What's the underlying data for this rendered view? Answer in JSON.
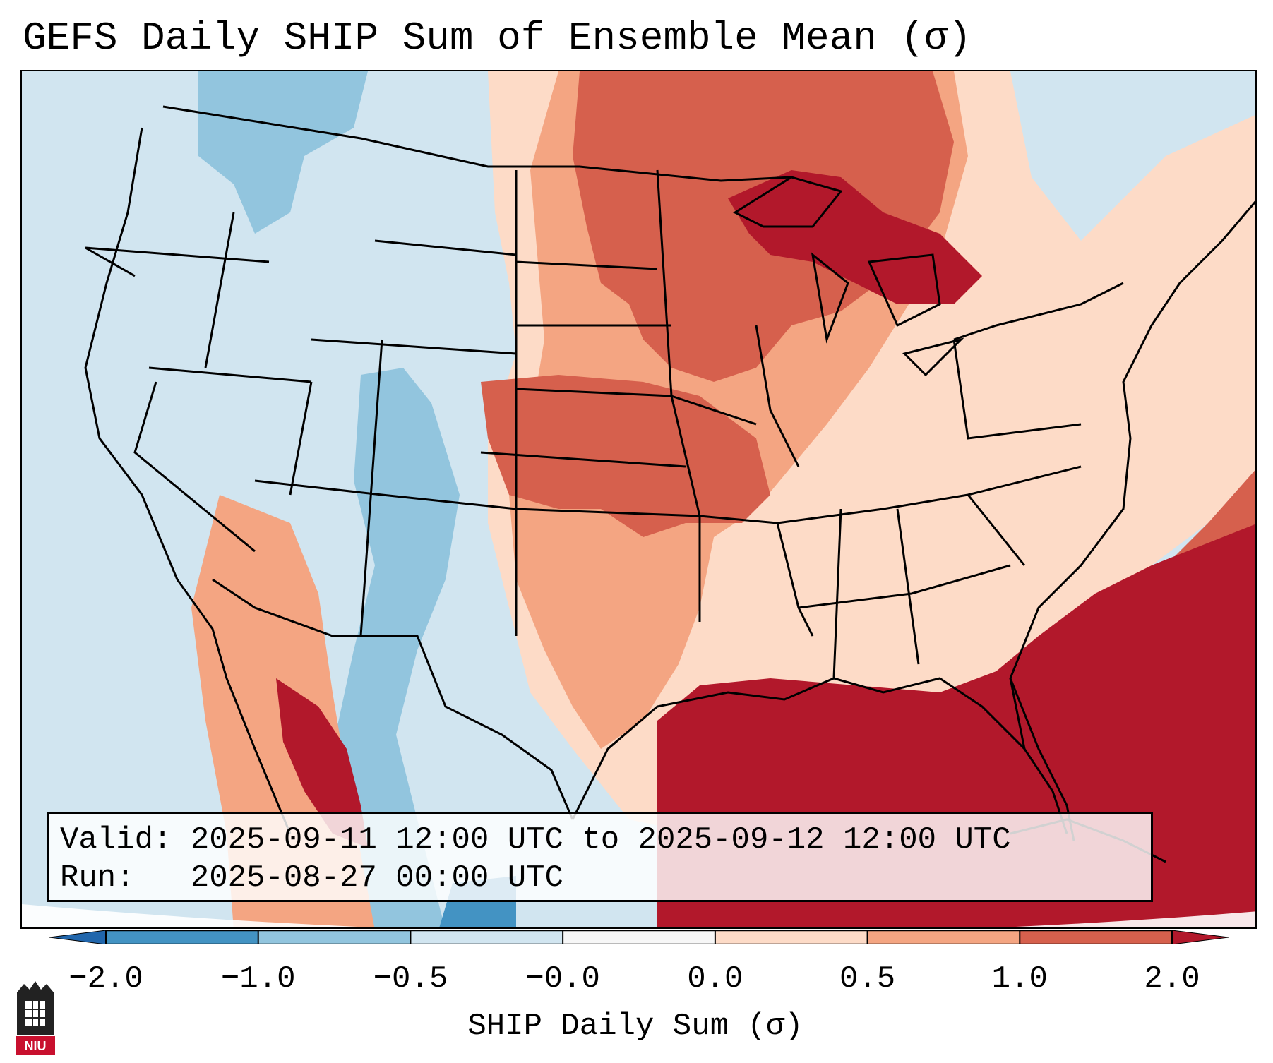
{
  "title": "GEFS Daily SHIP Sum of Ensemble Mean (σ)",
  "info": {
    "valid_line": "Valid: 2025-09-11 12:00 UTC to 2025-09-12 12:00 UTC",
    "run_line": "Run:   2025-08-27 00:00 UTC"
  },
  "colorbar": {
    "label": "SHIP Daily Sum (σ)",
    "tick_labels": [
      "−2.0",
      "−1.0",
      "−0.5",
      "−0.0",
      "0.0",
      "0.5",
      "1.0",
      "2.0"
    ],
    "bins": [
      {
        "range": "< -2.0",
        "color": "#2166ac"
      },
      {
        "range": "-2.0 to -1.0",
        "color": "#4393c3"
      },
      {
        "range": "-1.0 to -0.5",
        "color": "#92c5de"
      },
      {
        "range": "-0.5 to -0.0",
        "color": "#d1e5f0"
      },
      {
        "range": "-0.0 to 0.0",
        "color": "#f7f7f7"
      },
      {
        "range": "0.0 to 0.5",
        "color": "#fddbc7"
      },
      {
        "range": "0.5 to 1.0",
        "color": "#f4a582"
      },
      {
        "range": "1.0 to 2.0",
        "color": "#d6604d"
      },
      {
        "range": "> 2.0",
        "color": "#b2182b"
      }
    ],
    "extend": "both"
  },
  "map_regions": [
    {
      "name": "gulf-of-mexico-and-southeast-atlantic",
      "color": "#b2182b"
    },
    {
      "name": "upper-great-lakes",
      "color": "#b2182b"
    },
    {
      "name": "northern-plains-upper-midwest",
      "color": "#d6604d"
    },
    {
      "name": "central-plains-kansas-missouri",
      "color": "#d6604d"
    },
    {
      "name": "ohio-valley-texas",
      "color": "#fddbc7"
    },
    {
      "name": "rockies-front-range",
      "color": "#92c5de"
    },
    {
      "name": "west-and-southeast-us",
      "color": "#d1e5f0"
    }
  ],
  "logo": {
    "text": "NIU",
    "color": "#c8102e"
  }
}
